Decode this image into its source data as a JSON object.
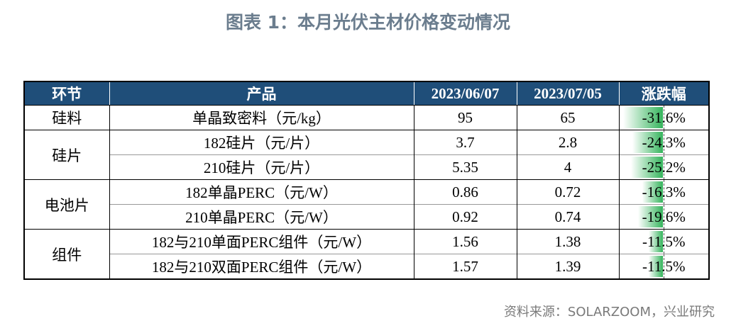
{
  "title": "图表 1：本月光伏主材价格变动情况",
  "table": {
    "header": [
      "环节",
      "产品",
      "2023/06/07",
      "2023/07/05",
      "涨跌幅"
    ],
    "groups": [
      {
        "label": "硅料",
        "rows": [
          [
            "单晶致密料（元/kg）",
            "95",
            "65",
            "-31.6%"
          ]
        ]
      },
      {
        "label": "硅片",
        "rows": [
          [
            "182硅片（元/片）",
            "3.7",
            "2.8",
            "-24.3%"
          ],
          [
            "210硅片（元/片）",
            "5.35",
            "4",
            "-25.2%"
          ]
        ]
      },
      {
        "label": "电池片",
        "rows": [
          [
            "182单晶PERC（元/W）",
            "0.86",
            "0.72",
            "-16.3%"
          ],
          [
            "210单晶PERC（元/W）",
            "0.92",
            "0.74",
            "-19.6%"
          ]
        ]
      },
      {
        "label": "组件",
        "rows": [
          [
            "182与210单面PERC组件（元/W）",
            "1.56",
            "1.38",
            "-11.5%"
          ],
          [
            "182与210双面PERC组件（元/W）",
            "1.57",
            "1.39",
            "-11.5%"
          ]
        ]
      }
    ]
  },
  "source": "资料来源：SOLARZOOM，兴业研究"
}
